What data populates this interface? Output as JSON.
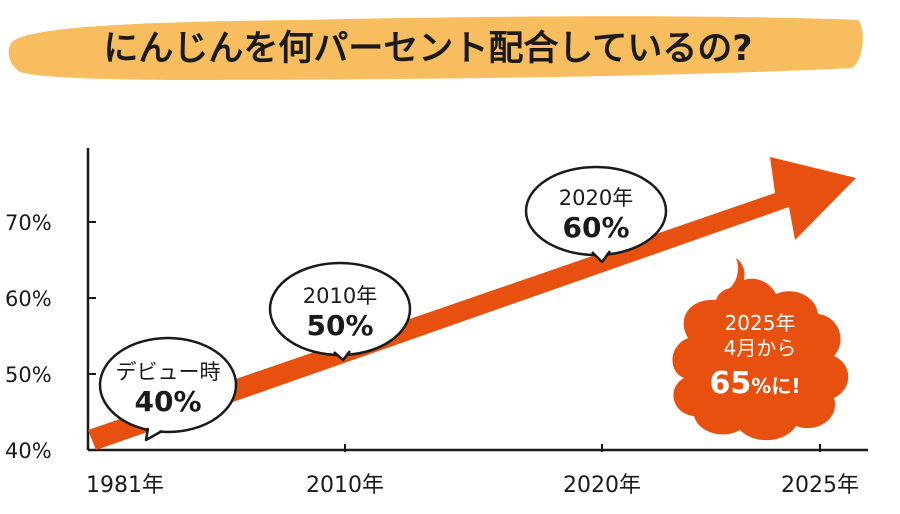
{
  "colors": {
    "title_highlight": "#f7bd5e",
    "arrow": "#e8500f",
    "axis": "#1a1a1a",
    "bubble_fill": "#ffffff",
    "callout_fill": "#e8500f",
    "callout_text": "#ffffff"
  },
  "chart_data": {
    "type": "line",
    "title": "にんじんを何パーセント配合しているの?",
    "x_ticks": [
      "1981年",
      "2010年",
      "2020年",
      "2025年"
    ],
    "y_ticks": [
      "40%",
      "50%",
      "60%",
      "70%"
    ],
    "ylim": [
      40,
      70
    ],
    "points": [
      {
        "x": "1981年",
        "y": 40,
        "label_top": "デビュー時",
        "label_value": "40%"
      },
      {
        "x": "2010年",
        "y": 50,
        "label_top": "2010年",
        "label_value": "50%"
      },
      {
        "x": "2020年",
        "y": 60,
        "label_top": "2020年",
        "label_value": "60%"
      }
    ],
    "callout": {
      "line1": "2025年",
      "line2": "4月から",
      "value": "65",
      "unit": "%に!"
    }
  }
}
